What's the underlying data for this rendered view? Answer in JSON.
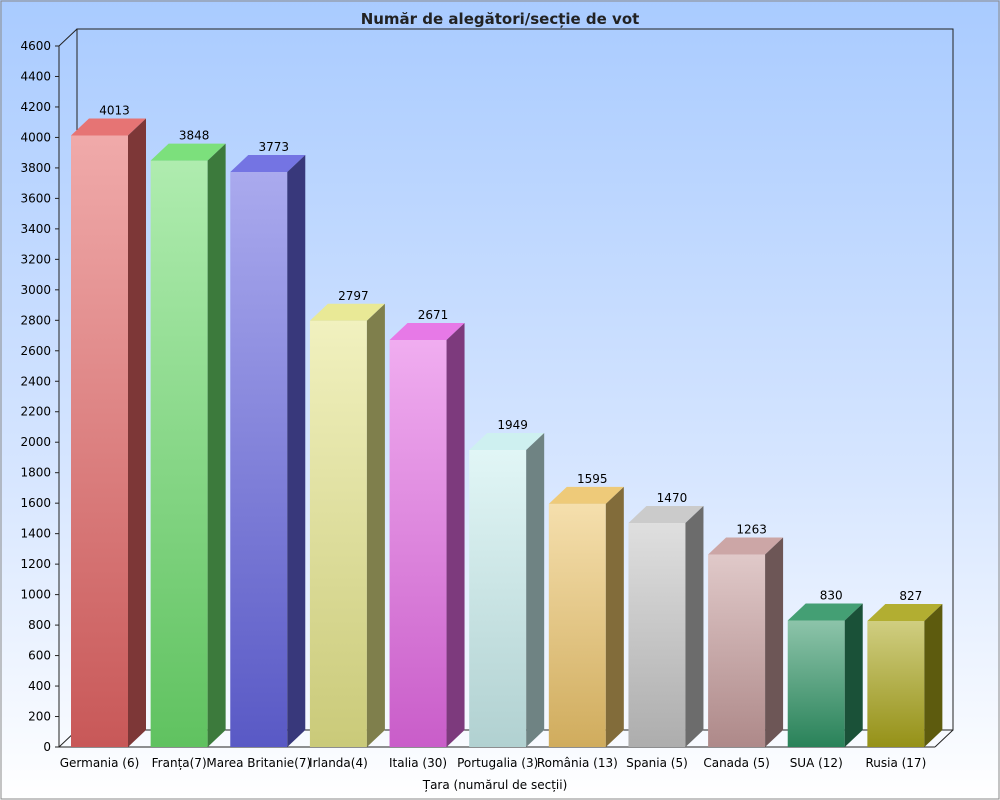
{
  "chart_data": {
    "type": "bar",
    "title": "Număr de alegători/secție de vot",
    "xlabel": "Țara  (numărul de secții)",
    "ylabel": "",
    "ylim": [
      0,
      4600
    ],
    "ytick_step": 200,
    "grid": false,
    "legend": "none",
    "categories": [
      "Germania (6)",
      "Franța(7)",
      "Marea Britanie(7)",
      "Irlanda(4)",
      "Italia (30)",
      "Portugalia (3)",
      "România (13)",
      "Spania (5)",
      "Canada (5)",
      "SUA (12)",
      "Rusia (17)"
    ],
    "values": [
      4013,
      3848,
      3773,
      2797,
      2671,
      1949,
      1595,
      1470,
      1263,
      830,
      827
    ],
    "colors": [
      "#e36464",
      "#6ddd6d",
      "#6565e0",
      "#e6e68a",
      "#e46ae4",
      "#c9eeee",
      "#ecc46a",
      "#c5c5c5",
      "#c69c9c",
      "#2f9465",
      "#a9a51a"
    ]
  }
}
